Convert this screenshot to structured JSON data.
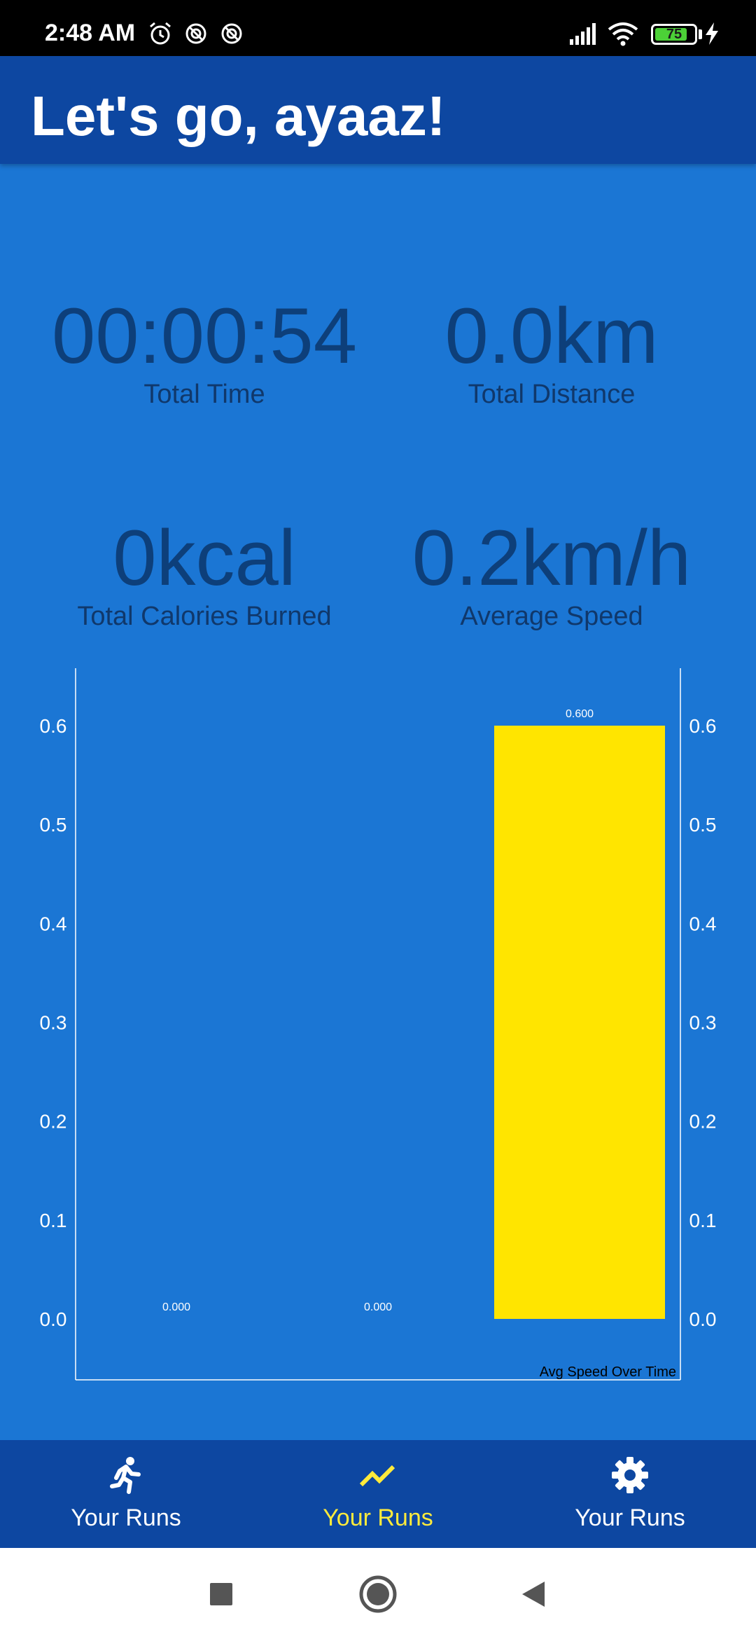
{
  "status_bar": {
    "time": "2:48 AM",
    "icons": [
      "alarm-icon",
      "sync-off-icon",
      "sync-off-icon",
      "signal-icon",
      "wifi-icon",
      "battery-icon",
      "charging-icon"
    ],
    "battery_level": "75"
  },
  "app_bar": {
    "title": "Let's go, ayaaz!"
  },
  "stats": [
    {
      "value": "00:00:54",
      "label": "Total Time"
    },
    {
      "value": "0.0km",
      "label": "Total Distance"
    },
    {
      "value": "0kcal",
      "label": "Total Calories Burned"
    },
    {
      "value": "0.2km/h",
      "label": "Average Speed"
    }
  ],
  "chart_data": {
    "type": "bar",
    "values": [
      0.0,
      0.0,
      0.6
    ],
    "value_labels": [
      "0.000",
      "0.000",
      "0.600"
    ],
    "ylim": [
      0,
      0.6
    ],
    "yticks": [
      "0.0",
      "0.1",
      "0.2",
      "0.3",
      "0.4",
      "0.5",
      "0.6"
    ],
    "description_label": "Avg Speed Over Time",
    "bar_color": "#ffe500",
    "axis_color": "#ffffff",
    "y_axis_both_sides": true,
    "grid": false,
    "legend": "none"
  },
  "bottom_nav": {
    "items": [
      {
        "icon": "run-icon",
        "label": "Your Runs",
        "active": false
      },
      {
        "icon": "trending-icon",
        "label": "Your Runs",
        "active": true
      },
      {
        "icon": "gear-icon",
        "label": "Your Runs",
        "active": false
      }
    ],
    "active_color": "#ffeb3b",
    "inactive_color": "#ffffff"
  },
  "system_nav": {
    "buttons": [
      "recents-square-icon",
      "home-circle-icon",
      "back-triangle-icon"
    ]
  },
  "colors": {
    "background": "#1b76d4",
    "app_bar": "#0d47a1",
    "stat_text": "#0d3f7a"
  }
}
